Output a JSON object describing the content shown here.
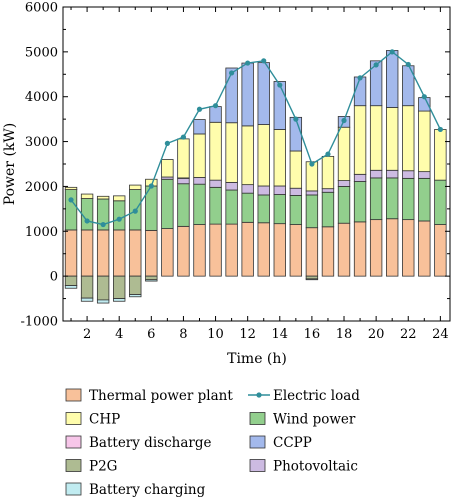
{
  "chart_data": {
    "type": "bar",
    "stacked": true,
    "xlabel": "Time (h)",
    "ylabel": "Power (kW)",
    "xlim": [
      0.5,
      24.6
    ],
    "ylim": [
      -1000,
      6000
    ],
    "xticks": [
      2,
      4,
      6,
      8,
      10,
      12,
      14,
      16,
      18,
      20,
      22,
      24
    ],
    "yticks": [
      -1000,
      0,
      1000,
      2000,
      3000,
      4000,
      5000,
      6000
    ],
    "grid": false,
    "legend_position": "bottom",
    "legend_columns": 2,
    "x": [
      1,
      2,
      3,
      4,
      5,
      6,
      7,
      8,
      9,
      10,
      11,
      12,
      13,
      14,
      15,
      16,
      17,
      18,
      19,
      20,
      21,
      22,
      23,
      24
    ],
    "positive_series": [
      {
        "name": "Thermal power plant",
        "color": "#f8c19a",
        "values": [
          1030,
          1030,
          1030,
          1030,
          1030,
          1020,
          1060,
          1110,
          1150,
          1160,
          1160,
          1200,
          1190,
          1170,
          1150,
          1080,
          1100,
          1180,
          1210,
          1260,
          1280,
          1260,
          1230,
          1150
        ]
      },
      {
        "name": "Wind power",
        "color": "#92cf8d",
        "values": [
          900,
          700,
          690,
          650,
          900,
          990,
          1100,
          950,
          900,
          820,
          760,
          650,
          620,
          650,
          650,
          730,
          770,
          820,
          900,
          930,
          910,
          920,
          950,
          990
        ]
      },
      {
        "name": "Photovoltaic",
        "color": "#cdbbe2",
        "values": [
          0,
          0,
          0,
          0,
          0,
          0,
          50,
          120,
          150,
          160,
          170,
          190,
          200,
          190,
          160,
          90,
          80,
          130,
          160,
          170,
          170,
          170,
          150,
          0
        ]
      },
      {
        "name": "Battery discharge",
        "color": "#f7c6e9",
        "values": [
          0,
          0,
          0,
          0,
          0,
          0,
          0,
          10,
          0,
          0,
          0,
          0,
          0,
          0,
          0,
          0,
          0,
          0,
          0,
          0,
          0,
          0,
          0,
          0
        ]
      },
      {
        "name": "CHP",
        "color": "#fffdac",
        "values": [
          50,
          100,
          60,
          110,
          100,
          150,
          390,
          870,
          970,
          1290,
          1330,
          1310,
          1370,
          1260,
          830,
          650,
          720,
          1190,
          1530,
          1440,
          1400,
          1450,
          1350,
          1130
        ]
      },
      {
        "name": "CCPP",
        "color": "#a3b9ec",
        "values": [
          0,
          0,
          0,
          0,
          0,
          0,
          0,
          0,
          320,
          350,
          1220,
          1400,
          1380,
          1070,
          750,
          0,
          0,
          240,
          640,
          1000,
          1270,
          890,
          300,
          0
        ]
      }
    ],
    "negative_series": [
      {
        "name": "P2G",
        "color": "#aebb92",
        "values": [
          -210,
          -490,
          -530,
          -500,
          -410,
          -80,
          0,
          0,
          0,
          0,
          0,
          0,
          0,
          0,
          0,
          -60,
          0,
          0,
          0,
          0,
          0,
          0,
          0,
          0
        ]
      },
      {
        "name": "Battery charging",
        "color": "#c1ecf1",
        "values": [
          -60,
          -70,
          -70,
          -60,
          -50,
          -30,
          0,
          0,
          0,
          0,
          0,
          0,
          0,
          0,
          0,
          -20,
          0,
          0,
          0,
          0,
          0,
          0,
          0,
          0
        ]
      }
    ],
    "line_series": {
      "name": "Electric load",
      "color": "#2f8e9a",
      "values": [
        1700,
        1230,
        1150,
        1270,
        1450,
        2010,
        2960,
        3100,
        3720,
        3800,
        4530,
        4750,
        4800,
        4260,
        3500,
        2500,
        2720,
        3470,
        4420,
        4710,
        5000,
        4720,
        4000,
        3270
      ]
    },
    "legend_order": [
      "Thermal power plant",
      "Electric load",
      "CHP",
      "Wind power",
      "Battery discharge",
      "CCPP",
      "P2G",
      "Photovoltaic",
      "Battery charging"
    ]
  }
}
